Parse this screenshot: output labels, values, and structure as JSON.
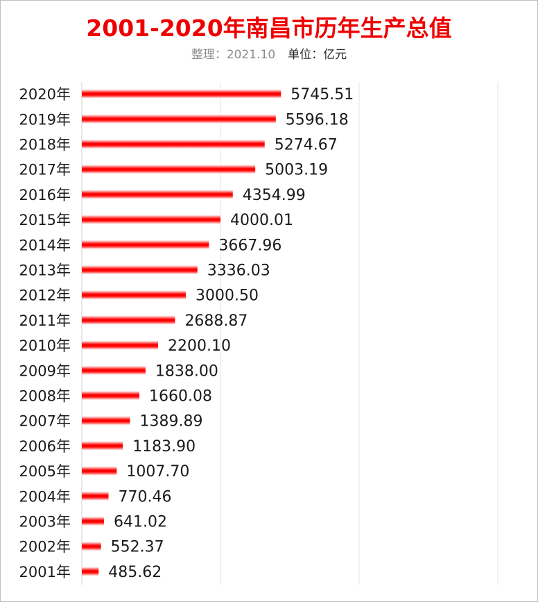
{
  "chart_data": {
    "type": "bar",
    "orientation": "horizontal",
    "title": "2001-2020年南昌市历年生产总值",
    "subtitle_note": "整理：2021.10",
    "subtitle_unit": "单位：亿元",
    "categories": [
      "2020年",
      "2019年",
      "2018年",
      "2017年",
      "2016年",
      "2015年",
      "2014年",
      "2013年",
      "2012年",
      "2011年",
      "2010年",
      "2009年",
      "2008年",
      "2007年",
      "2006年",
      "2005年",
      "2004年",
      "2003年",
      "2002年",
      "2001年"
    ],
    "values": [
      5745.51,
      5596.18,
      5274.67,
      5003.19,
      4354.99,
      4000.01,
      3667.96,
      3336.03,
      3000.5,
      2688.87,
      2200.1,
      1838.0,
      1660.08,
      1389.89,
      1183.9,
      1007.7,
      770.46,
      641.02,
      552.37,
      485.62
    ],
    "value_labels": [
      "5745.51",
      "5596.18",
      "5274.67",
      "5003.19",
      "4354.99",
      "4000.01",
      "3667.96",
      "3336.03",
      "3000.50",
      "2688.87",
      "2200.10",
      "1838.00",
      "1660.08",
      "1389.89",
      "1183.90",
      "1007.70",
      "770.46",
      "641.02",
      "552.37",
      "485.62"
    ],
    "xlim": [
      0,
      13000
    ],
    "grid": true,
    "legend": "none",
    "bar_color": "#ff0000",
    "xlabel": "",
    "ylabel": ""
  }
}
